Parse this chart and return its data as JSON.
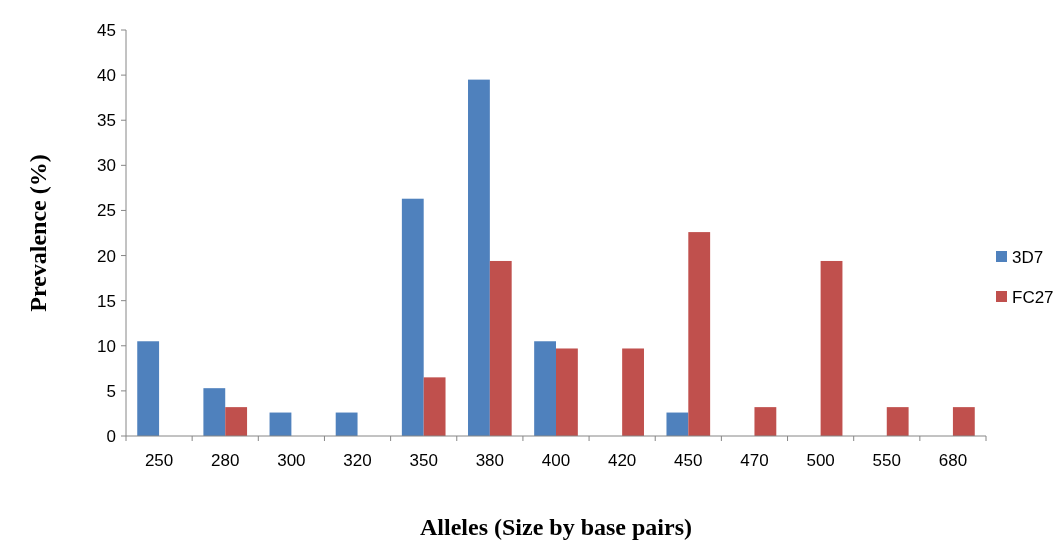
{
  "chart_data": {
    "type": "bar",
    "xlabel": "Alleles (Size by base pairs)",
    "ylabel": "Prevalence (%)",
    "categories": [
      "250",
      "280",
      "300",
      "320",
      "350",
      "380",
      "400",
      "420",
      "450",
      "470",
      "500",
      "550",
      "680"
    ],
    "series": [
      {
        "name": "3D7",
        "color": "#4f81bd",
        "values": [
          10.5,
          5.3,
          2.6,
          2.6,
          26.3,
          39.5,
          10.5,
          0,
          2.6,
          0,
          0,
          0,
          0
        ]
      },
      {
        "name": "FC27",
        "color": "#c0504d",
        "values": [
          0,
          3.2,
          0,
          0,
          6.5,
          19.4,
          9.7,
          9.7,
          22.6,
          3.2,
          19.4,
          3.2,
          3.2
        ]
      }
    ],
    "ylim": [
      0,
      45
    ],
    "yticks": [
      0,
      5,
      10,
      15,
      20,
      25,
      30,
      35,
      40,
      45
    ],
    "grid": false,
    "legend": "right"
  }
}
